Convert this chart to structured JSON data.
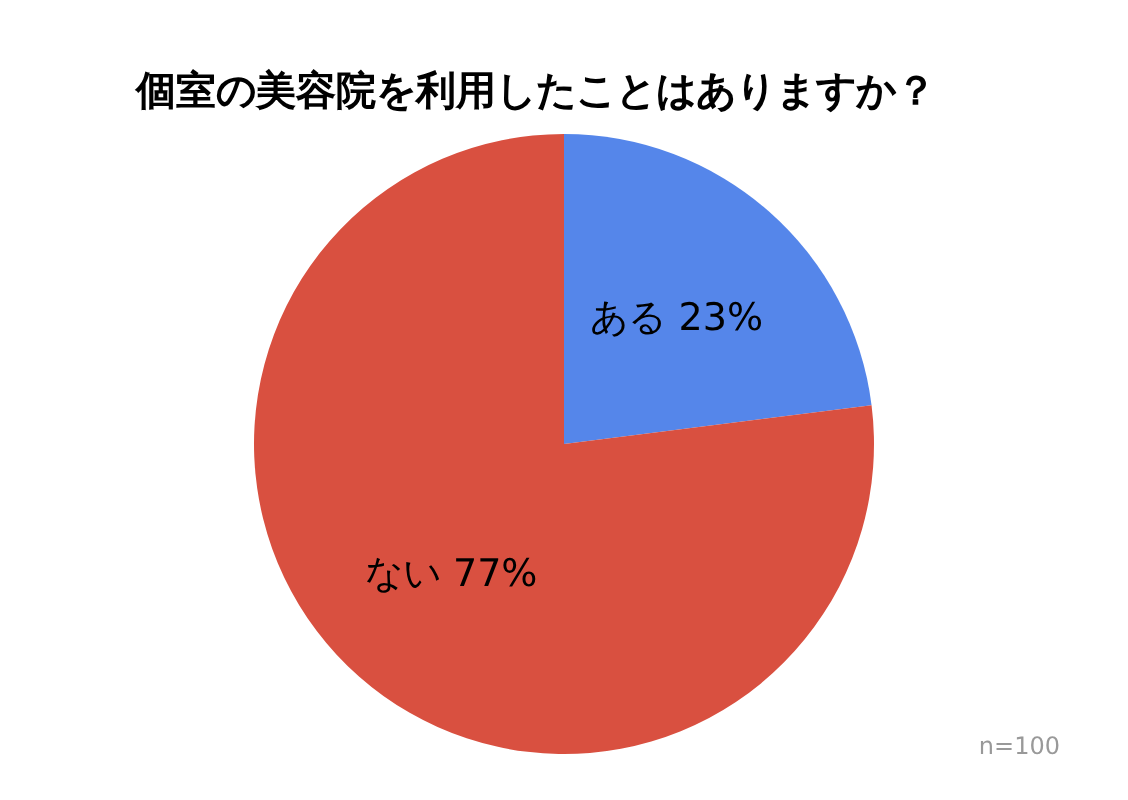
{
  "chart_data": {
    "type": "pie",
    "title": "個室の美容院を利用したことはありますか？",
    "categories": [
      "ある",
      "ない"
    ],
    "values": [
      23,
      77
    ],
    "value_labels": [
      "23%",
      "77%"
    ],
    "colors": [
      "#5586ea",
      "#d95040"
    ],
    "annotations": [
      "n=100"
    ]
  }
}
